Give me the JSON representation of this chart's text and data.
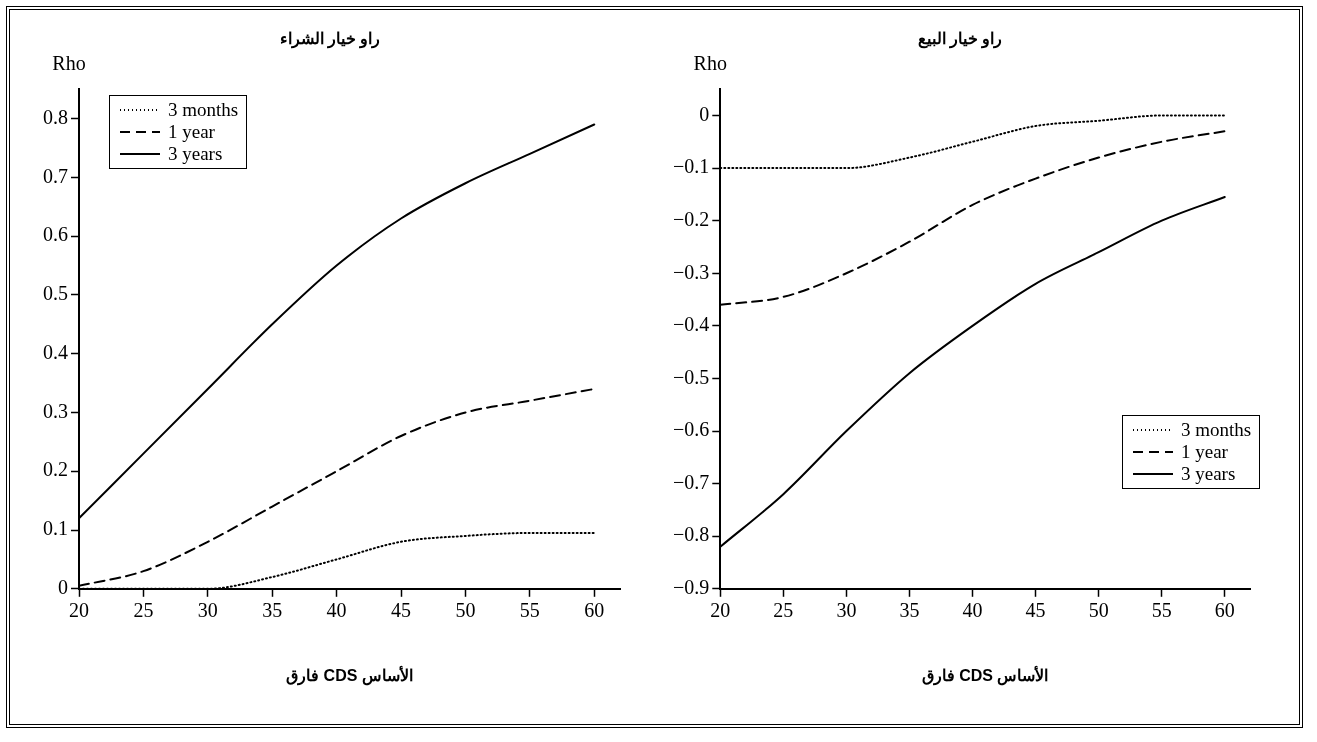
{
  "chart_data": [
    {
      "type": "line",
      "title": "راو خيار الشراء",
      "xlabel": "فارق CDS الأساس",
      "ylabel": "Rho",
      "x": [
        20,
        25,
        30,
        35,
        40,
        45,
        50,
        55,
        60
      ],
      "xlim": [
        20,
        62
      ],
      "xticks": [
        20,
        25,
        30,
        35,
        40,
        45,
        50,
        55,
        60
      ],
      "ylim": [
        0,
        0.85
      ],
      "yticks": [
        0,
        0.1,
        0.2,
        0.3,
        0.4,
        0.5,
        0.6,
        0.7,
        0.8
      ],
      "grid": false,
      "legend": "top left",
      "marker": "none",
      "series": [
        {
          "name": "3 months",
          "color": "#000000",
          "line_style": "dotted",
          "values": [
            0,
            0,
            0,
            0.02,
            0.05,
            0.08,
            0.09,
            0.095,
            0.095
          ]
        },
        {
          "name": "1 year",
          "color": "#000000",
          "line_style": "dashed",
          "values": [
            0.005,
            0.03,
            0.08,
            0.14,
            0.2,
            0.26,
            0.3,
            0.32,
            0.34
          ]
        },
        {
          "name": "3 years",
          "color": "#000000",
          "line_style": "solid",
          "values": [
            0.12,
            0.23,
            0.34,
            0.45,
            0.55,
            0.63,
            0.69,
            0.74,
            0.79
          ]
        }
      ]
    },
    {
      "type": "line",
      "title": "راو خيار البيع",
      "xlabel": "فارق CDS الأساس",
      "ylabel": "Rho",
      "x": [
        20,
        25,
        30,
        35,
        40,
        45,
        50,
        55,
        60
      ],
      "xlim": [
        20,
        62
      ],
      "xticks": [
        20,
        25,
        30,
        35,
        40,
        45,
        50,
        55,
        60
      ],
      "ylim": [
        -0.9,
        0.05
      ],
      "yticks": [
        -0.9,
        -0.8,
        -0.7,
        -0.6,
        -0.5,
        -0.4,
        -0.3,
        -0.2,
        -0.1,
        0
      ],
      "grid": false,
      "legend": "bottom right",
      "marker": "none",
      "series": [
        {
          "name": "3 months",
          "color": "#000000",
          "line_style": "dotted",
          "values": [
            -0.1,
            -0.1,
            -0.1,
            -0.08,
            -0.05,
            -0.02,
            -0.01,
            0,
            0
          ]
        },
        {
          "name": "1 year",
          "color": "#000000",
          "line_style": "dashed",
          "values": [
            -0.36,
            -0.345,
            -0.3,
            -0.24,
            -0.17,
            -0.12,
            -0.08,
            -0.05,
            -0.03
          ]
        },
        {
          "name": "3 years",
          "color": "#000000",
          "line_style": "solid",
          "values": [
            -0.82,
            -0.72,
            -0.6,
            -0.49,
            -0.4,
            -0.32,
            -0.26,
            -0.2,
            -0.155
          ]
        }
      ]
    }
  ]
}
